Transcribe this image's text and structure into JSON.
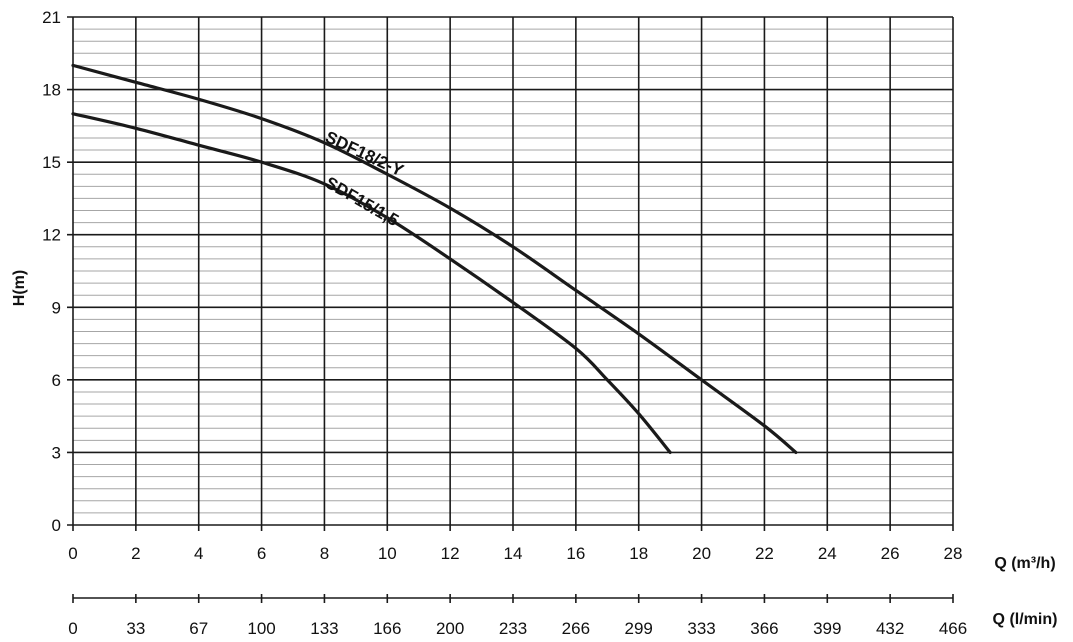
{
  "chart_data": {
    "type": "line",
    "xlabel": "Q (m³/h)",
    "x2label": "Q (l/min)",
    "ylabel": "H(m)",
    "xlim": [
      0,
      28
    ],
    "ylim": [
      0,
      21
    ],
    "x_ticks": [
      "0",
      "2",
      "4",
      "6",
      "8",
      "10",
      "12",
      "14",
      "16",
      "18",
      "20",
      "22",
      "24",
      "26",
      "28"
    ],
    "x2_ticks": [
      "0",
      "33",
      "67",
      "100",
      "133",
      "166",
      "200",
      "233",
      "266",
      "299",
      "333",
      "366",
      "399",
      "432",
      "466"
    ],
    "y_ticks": [
      "0",
      "3",
      "6",
      "9",
      "12",
      "15",
      "18",
      "21"
    ],
    "grid": true,
    "series": [
      {
        "name": "SDF18/2-Y",
        "x": [
          0,
          2,
          4,
          6,
          8,
          10,
          12,
          14,
          16,
          18,
          20,
          22,
          23
        ],
        "y": [
          19.0,
          18.3,
          17.6,
          16.8,
          15.8,
          14.5,
          13.1,
          11.5,
          9.7,
          7.9,
          6.0,
          4.1,
          3.0
        ]
      },
      {
        "name": "SDF15/1,5",
        "x": [
          0,
          2,
          4,
          6,
          8,
          10,
          12,
          14,
          16,
          17,
          18,
          19
        ],
        "y": [
          17.0,
          16.4,
          15.7,
          15.0,
          14.1,
          12.7,
          11.0,
          9.2,
          7.3,
          6.0,
          4.6,
          3.0
        ]
      }
    ]
  }
}
